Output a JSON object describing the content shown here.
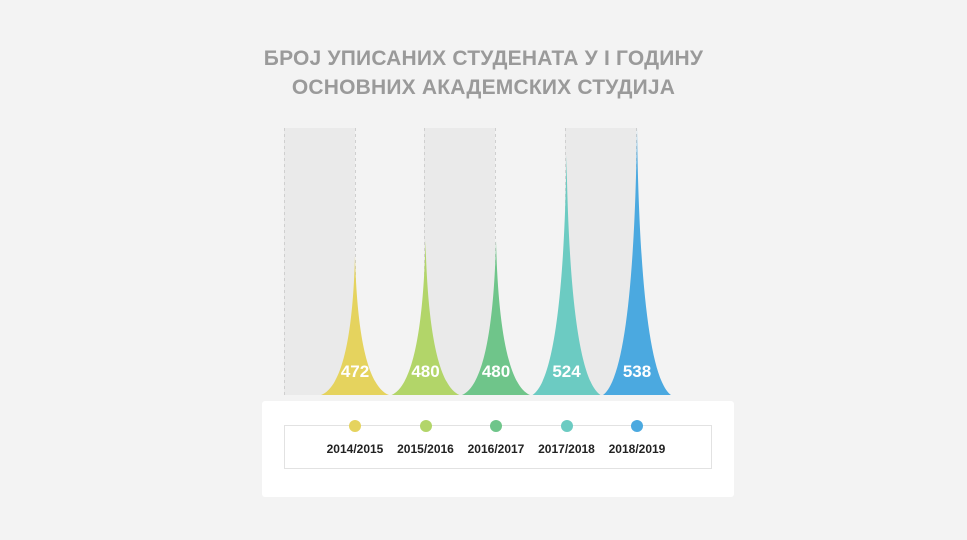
{
  "title": {
    "line1": "БРОЈ УПИСАНИХ СТУДЕНАТА У I ГОДИНУ",
    "line2": "ОСНОВНИХ АКАДЕМСКИХ СТУДИЈА"
  },
  "chart_data": {
    "type": "bar",
    "bar_shape": "spike",
    "title": "БРОЈ УПИСАНИХ СТУДЕНАТА У I ГОДИНУ ОСНОВНИХ АКАДЕМСКИХ СТУДИЈА",
    "categories": [
      "2014/2015",
      "2015/2016",
      "2016/2017",
      "2017/2018",
      "2018/2019"
    ],
    "values": [
      472,
      480,
      480,
      524,
      538
    ],
    "colors": [
      "#e5d35e",
      "#b2d569",
      "#6fc58a",
      "#6ccbc2",
      "#4ba9e0"
    ],
    "ylim": [
      400,
      538
    ],
    "grid": false,
    "legend": "bottom",
    "data_labels": true
  }
}
